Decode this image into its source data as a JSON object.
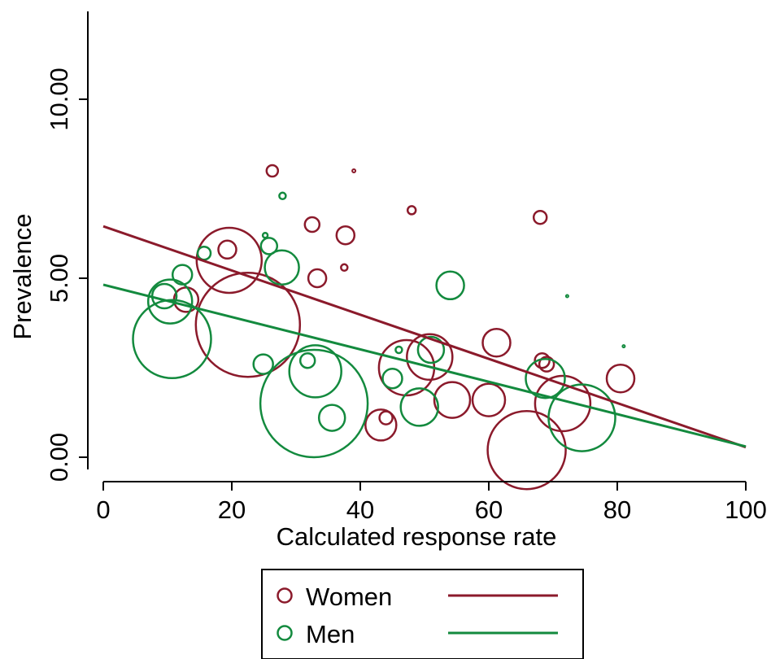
{
  "chart_data": {
    "type": "scatter",
    "xlabel": "Calculated response rate",
    "ylabel": "Prevalence",
    "xlim": [
      0,
      100
    ],
    "ylim": [
      -0.3,
      12.5
    ],
    "x_ticks": [
      0,
      20,
      40,
      60,
      80,
      100
    ],
    "x_tick_labels": [
      "0",
      "20",
      "40",
      "60",
      "80",
      "100"
    ],
    "y_ticks": [
      0,
      5,
      10
    ],
    "y_tick_labels": [
      "0.00",
      "5.00",
      "10.00"
    ],
    "grid": false,
    "legend_position": "bottom",
    "series": [
      {
        "name": "Women",
        "color": "#8b1a2b",
        "points": [
          {
            "x": 19.6,
            "y": 5.5,
            "r": 40
          },
          {
            "x": 22.5,
            "y": 3.7,
            "r": 64
          },
          {
            "x": 26.3,
            "y": 8.0,
            "r": 7
          },
          {
            "x": 19.3,
            "y": 5.8,
            "r": 11
          },
          {
            "x": 12.9,
            "y": 4.4,
            "r": 15
          },
          {
            "x": 32.5,
            "y": 6.5,
            "r": 9
          },
          {
            "x": 33.3,
            "y": 5.0,
            "r": 11
          },
          {
            "x": 37.5,
            "y": 5.3,
            "r": 4
          },
          {
            "x": 37.7,
            "y": 6.2,
            "r": 11
          },
          {
            "x": 39.0,
            "y": 8.0,
            "r": 2
          },
          {
            "x": 48.0,
            "y": 6.9,
            "r": 5
          },
          {
            "x": 43.2,
            "y": 0.9,
            "r": 19
          },
          {
            "x": 44.0,
            "y": 1.1,
            "r": 8
          },
          {
            "x": 47.2,
            "y": 2.5,
            "r": 34
          },
          {
            "x": 50.8,
            "y": 2.8,
            "r": 28
          },
          {
            "x": 54.3,
            "y": 1.6,
            "r": 22
          },
          {
            "x": 60.0,
            "y": 1.6,
            "r": 20
          },
          {
            "x": 61.2,
            "y": 3.2,
            "r": 17
          },
          {
            "x": 65.9,
            "y": 0.2,
            "r": 48
          },
          {
            "x": 68.0,
            "y": 6.7,
            "r": 8
          },
          {
            "x": 68.3,
            "y": 2.7,
            "r": 9
          },
          {
            "x": 69.0,
            "y": 2.6,
            "r": 9
          },
          {
            "x": 71.5,
            "y": 1.5,
            "r": 34
          },
          {
            "x": 80.5,
            "y": 2.2,
            "r": 17
          }
        ],
        "fit_line": {
          "x": [
            0,
            100
          ],
          "y": [
            6.45,
            0.28
          ]
        }
      },
      {
        "name": "Men",
        "color": "#138a3e",
        "points": [
          {
            "x": 10.7,
            "y": 3.3,
            "r": 48
          },
          {
            "x": 10.4,
            "y": 4.35,
            "r": 27
          },
          {
            "x": 9.5,
            "y": 4.5,
            "r": 15
          },
          {
            "x": 12.3,
            "y": 5.1,
            "r": 12
          },
          {
            "x": 15.7,
            "y": 5.7,
            "r": 8
          },
          {
            "x": 24.9,
            "y": 2.6,
            "r": 12
          },
          {
            "x": 25.2,
            "y": 6.2,
            "r": 3
          },
          {
            "x": 25.8,
            "y": 5.9,
            "r": 10
          },
          {
            "x": 27.8,
            "y": 5.3,
            "r": 21
          },
          {
            "x": 27.9,
            "y": 7.3,
            "r": 4
          },
          {
            "x": 31.8,
            "y": 2.7,
            "r": 9
          },
          {
            "x": 32.8,
            "y": 1.5,
            "r": 66
          },
          {
            "x": 33.0,
            "y": 2.4,
            "r": 32
          },
          {
            "x": 35.6,
            "y": 1.1,
            "r": 16
          },
          {
            "x": 45.0,
            "y": 2.2,
            "r": 12
          },
          {
            "x": 46.0,
            "y": 3.0,
            "r": 4
          },
          {
            "x": 49.2,
            "y": 1.4,
            "r": 23
          },
          {
            "x": 51.0,
            "y": 3.0,
            "r": 16
          },
          {
            "x": 54.0,
            "y": 4.8,
            "r": 17
          },
          {
            "x": 68.8,
            "y": 2.2,
            "r": 24
          },
          {
            "x": 72.2,
            "y": 4.5,
            "r": 1.5
          },
          {
            "x": 74.5,
            "y": 1.1,
            "r": 41
          },
          {
            "x": 81.0,
            "y": 3.1,
            "r": 1.5
          }
        ],
        "fit_line": {
          "x": [
            0,
            100
          ],
          "y": [
            4.82,
            0.3
          ]
        }
      }
    ],
    "legend": [
      {
        "label": "Women"
      },
      {
        "label": "Men"
      }
    ]
  }
}
